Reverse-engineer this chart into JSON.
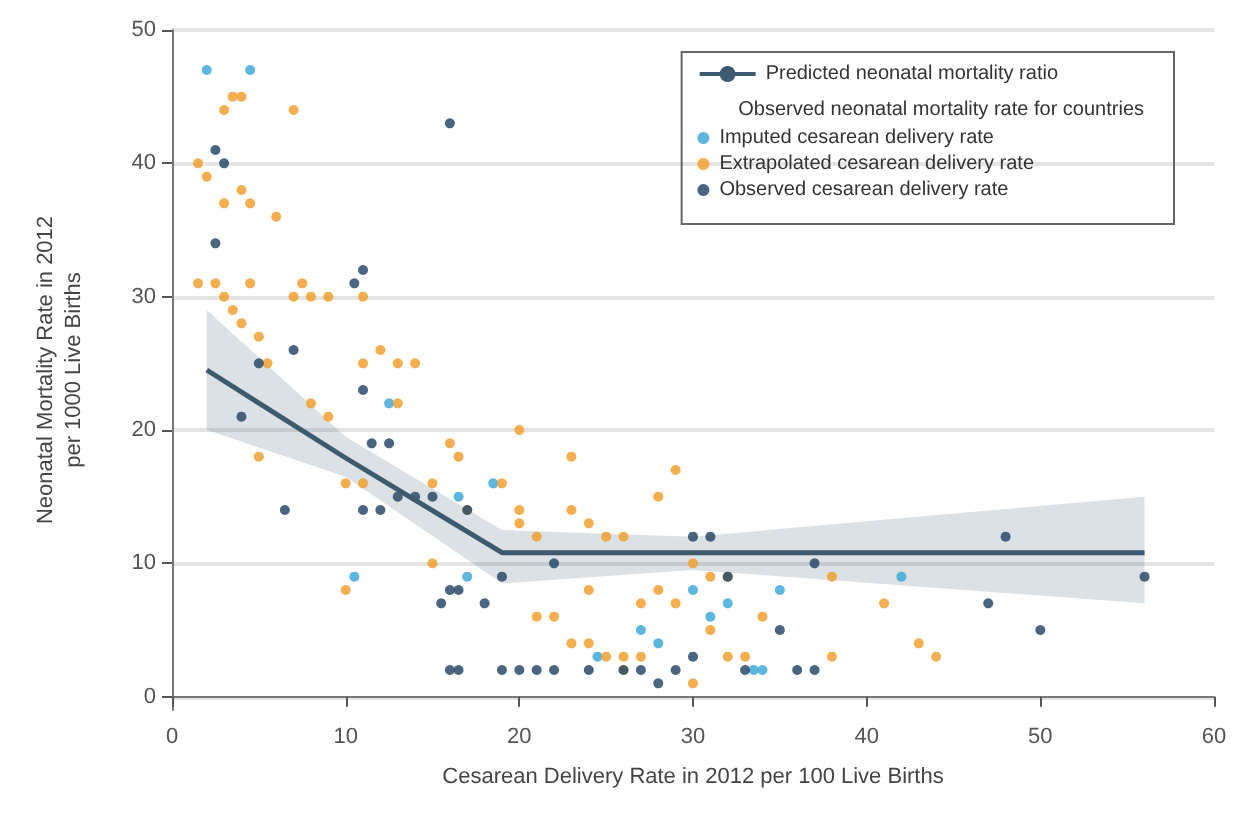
{
  "chart_data": {
    "type": "scatter",
    "xlabel": "Cesarean Delivery Rate in 2012 per 100 Live Births",
    "ylabel": "Neonatal Mortality Rate in 2012\nper 1000 Live Births",
    "legend_title": "Observed neonatal mortality rate for countries",
    "xlim": [
      0,
      60
    ],
    "xticks": [
      0,
      10,
      20,
      30,
      40,
      50,
      60
    ],
    "ylim": [
      -1,
      50
    ],
    "yticks": [
      0,
      10,
      20,
      30,
      40,
      50
    ],
    "grid": "y",
    "legend": "top right",
    "marker": "circle",
    "series": [
      {
        "name": "Predicted neonatal mortality ratio",
        "type": "line",
        "marker": "none",
        "color": "#3d5a6e",
        "x": [
          2,
          10,
          19,
          30,
          56
        ],
        "values": [
          24.5,
          17.9,
          10.8,
          10.8,
          10.8
        ],
        "lower": [
          20,
          16.5,
          8.5,
          9.5,
          7
        ],
        "upper": [
          29,
          19.5,
          12.5,
          12,
          15
        ]
      },
      {
        "name": "Imputed cesarean delivery rate",
        "color": "#3fa9d8",
        "x": [
          2,
          4.5,
          10.5,
          16.5,
          12.5,
          18.5,
          17,
          24.5,
          28,
          31,
          33.5,
          42,
          30,
          27,
          34,
          32,
          35
        ],
        "values": [
          47,
          47,
          9,
          15,
          22,
          16,
          9,
          3,
          4,
          6,
          2,
          9,
          8,
          5,
          2,
          7,
          8
        ]
      },
      {
        "name": "Extrapolated cesarean delivery rate",
        "color": "#f0a030",
        "x": [
          1.5,
          2,
          3,
          3.5,
          4,
          7,
          3,
          4,
          4.5,
          6,
          1.5,
          2.5,
          3,
          3.5,
          4,
          4.5,
          5,
          5.5,
          7,
          7.5,
          8,
          9,
          11,
          12,
          13,
          14,
          11,
          5,
          8,
          9,
          10,
          11,
          13,
          15,
          16,
          16.5,
          17,
          15,
          10,
          20,
          20,
          19,
          20,
          21,
          22,
          23,
          23,
          25,
          26,
          24,
          25,
          26,
          26,
          27,
          28,
          29,
          27,
          28,
          29,
          30,
          31,
          32,
          33,
          34,
          38,
          38,
          41,
          43,
          44,
          24,
          24,
          31,
          32,
          30,
          21,
          23
        ],
        "values": [
          40,
          39,
          44,
          45,
          45,
          44,
          37,
          38,
          37,
          36,
          31,
          31,
          30,
          29,
          28,
          31,
          27,
          25,
          30,
          31,
          30,
          30,
          30,
          26,
          25,
          25,
          25,
          18,
          22,
          21,
          16,
          16,
          22,
          16,
          19,
          18,
          14,
          10,
          8,
          20,
          14,
          16,
          13,
          6,
          6,
          4,
          18,
          12,
          12,
          13,
          3,
          3,
          2,
          3,
          15,
          17,
          7,
          8,
          7,
          1,
          5,
          3,
          3,
          6,
          3,
          9,
          7,
          4,
          3,
          8,
          4,
          9,
          9,
          10,
          12,
          14
        ]
      },
      {
        "name": "Observed cesarean delivery rate",
        "color": "#2a4a6a",
        "x": [
          16,
          2.5,
          3,
          2.5,
          10.5,
          11,
          4,
          5,
          7,
          11,
          11.5,
          12,
          6.5,
          11,
          12.5,
          13,
          14,
          15,
          17,
          16.5,
          15.5,
          16,
          18,
          19,
          22,
          16,
          16.5,
          19,
          20,
          21,
          22,
          24,
          26,
          27,
          28,
          29,
          30,
          31,
          32,
          35,
          36,
          37,
          37,
          47,
          48,
          50,
          56,
          33,
          30
        ],
        "values": [
          43,
          41,
          40,
          34,
          31,
          32,
          21,
          25,
          26,
          23,
          19,
          14,
          14,
          14,
          19,
          15,
          15,
          15,
          14,
          8,
          7,
          8,
          7,
          9,
          10,
          2,
          2,
          2,
          2,
          2,
          2,
          2,
          2,
          2,
          1,
          2,
          12,
          12,
          9,
          5,
          2,
          2,
          10,
          7,
          12,
          5,
          9,
          2,
          3
        ]
      }
    ]
  }
}
